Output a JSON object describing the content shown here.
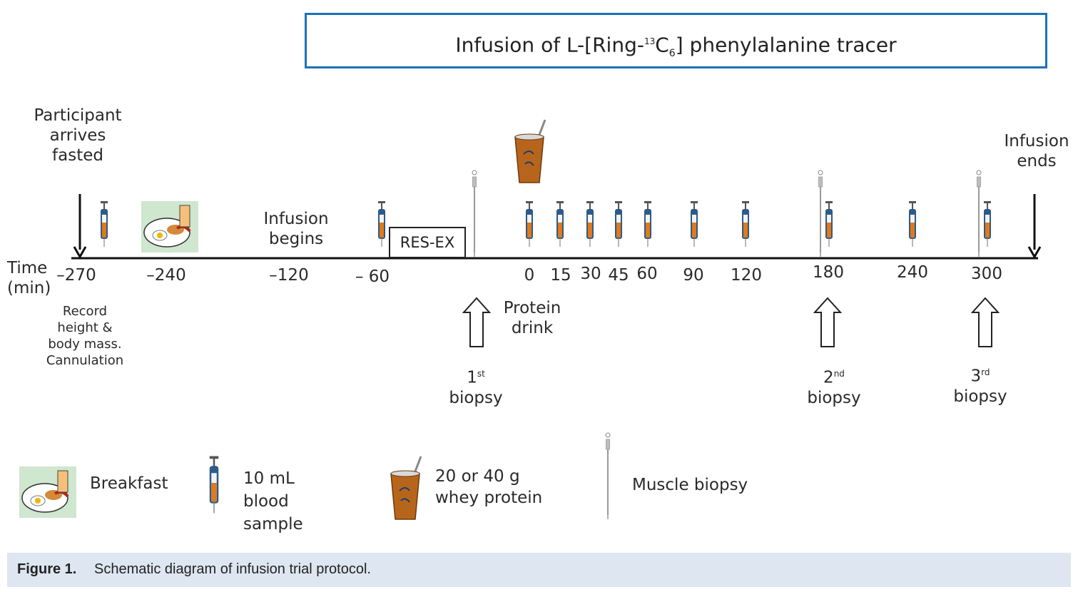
{
  "title": {
    "prefix": "Infusion of L-[Ring-",
    "sup": "13",
    "mid": "C",
    "sub": "6",
    "suffix": "] phenylalanine tracer"
  },
  "events": {
    "arrives": [
      "Participant",
      "arrives",
      "fasted"
    ],
    "infusion_begins": [
      "Infusion",
      "begins"
    ],
    "infusion_ends": [
      "Infusion",
      "ends"
    ],
    "res_ex": "RES-EX",
    "protein_drink": [
      "Protein",
      "drink"
    ],
    "record": [
      "Record",
      "height &",
      "body mass.",
      "Cannulation"
    ]
  },
  "axis": {
    "label_line1": "Time",
    "label_line2": "(min)",
    "ticks": [
      "–270",
      "–240",
      "–120",
      "– 60",
      "0",
      "15",
      "30",
      "45",
      "60",
      "90",
      "120",
      "180",
      "240",
      "300"
    ]
  },
  "biopsies": [
    {
      "num": "1",
      "sup": "st",
      "word": "biopsy"
    },
    {
      "num": "2",
      "sup": "nd",
      "word": "biopsy"
    },
    {
      "num": "3",
      "sup": "rd",
      "word": "biopsy"
    }
  ],
  "legend": {
    "breakfast": "Breakfast",
    "blood": [
      "10 mL",
      "blood",
      "sample"
    ],
    "whey": [
      "20 or 40 g",
      "whey protein"
    ],
    "biopsy": "Muscle biopsy"
  },
  "caption": {
    "label": "Figure 1.",
    "text": "Schematic diagram of infusion trial protocol."
  },
  "colors": {
    "frame": "#1c72b8",
    "syringe_fill": "#e07a1a",
    "syringe_body": "#2d5a8a",
    "cup": "#b8651c",
    "caption_bg": "#dde6f1"
  }
}
